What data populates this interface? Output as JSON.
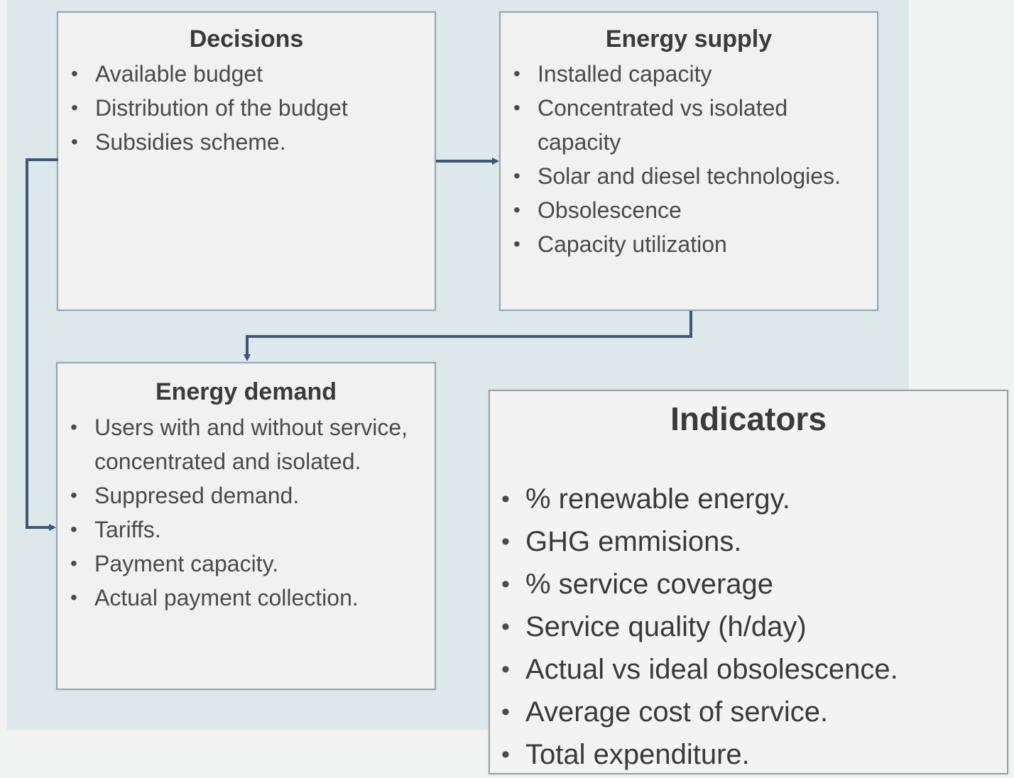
{
  "decisions": {
    "title": "Decisions",
    "items": [
      "Available budget",
      "Distribution of the budget",
      "Subsidies scheme."
    ]
  },
  "energy_supply": {
    "title": "Energy supply",
    "items": [
      "Installed capacity",
      "Concentrated vs isolated capacity",
      "Solar and diesel technologies.",
      "Obsolescence",
      "Capacity utilization"
    ]
  },
  "energy_demand": {
    "title": "Energy demand",
    "items": [
      "Users with and without service, concentrated and isolated.",
      "Suppresed demand.",
      "Tariffs.",
      "Payment capacity.",
      "Actual payment collection."
    ]
  },
  "indicators": {
    "title": "Indicators",
    "items": [
      "% renewable energy.",
      "GHG emmisions.",
      "% service coverage",
      "Service quality (h/day)",
      "Actual  vs ideal obsolescence.",
      "Average cost of service.",
      "Total expenditure."
    ]
  },
  "colors": {
    "panel_background": "#dde8eb",
    "box_border": "#8fa9bd",
    "arrow": "#3b5878"
  }
}
